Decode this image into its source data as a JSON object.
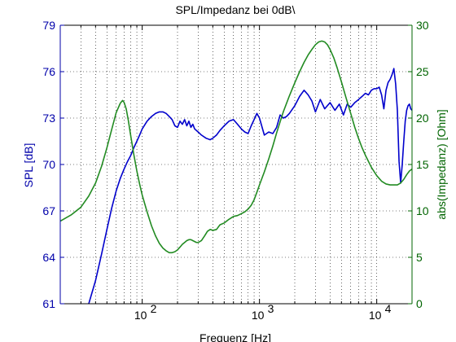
{
  "chart_data": {
    "type": "line",
    "title": "SPL/Impedanz bei 0dB\\",
    "xlabel": "Frequenz [Hz]",
    "x_scale": "log",
    "xlim": [
      20,
      20000
    ],
    "x_ticks": [
      {
        "value": 100,
        "label": "10",
        "exp": "2"
      },
      {
        "value": 1000,
        "label": "10",
        "exp": "3"
      },
      {
        "value": 10000,
        "label": "10",
        "exp": "4"
      }
    ],
    "y_left": {
      "label": "SPL [dB]",
      "color": "#0000aa",
      "lim": [
        61,
        79
      ],
      "ticks": [
        "61",
        "64",
        "67",
        "70",
        "73",
        "76",
        "79"
      ]
    },
    "y_right": {
      "label": "abs(Impedanz) [Ohm]",
      "color": "#006400",
      "lim": [
        0,
        30
      ],
      "ticks": [
        "0",
        "5",
        "10",
        "15",
        "20",
        "25",
        "30"
      ]
    },
    "grid": true,
    "series": [
      {
        "axis": "left",
        "color": "#0000cc",
        "x": [
          35,
          40,
          45,
          50,
          55,
          60,
          65,
          70,
          75,
          80,
          85,
          90,
          95,
          100,
          110,
          120,
          130,
          140,
          150,
          160,
          170,
          180,
          190,
          200,
          210,
          220,
          230,
          240,
          250,
          260,
          270,
          280,
          300,
          320,
          350,
          380,
          400,
          430,
          460,
          500,
          550,
          600,
          650,
          700,
          750,
          800,
          850,
          900,
          950,
          1000,
          1100,
          1200,
          1300,
          1400,
          1500,
          1600,
          1700,
          1800,
          2000,
          2200,
          2400,
          2600,
          2800,
          3000,
          3300,
          3600,
          4000,
          4400,
          4800,
          5200,
          5600,
          6000,
          6500,
          7000,
          7500,
          8000,
          8500,
          9000,
          9500,
          10000,
          10500,
          11000,
          11500,
          12000,
          12500,
          13000,
          13500,
          14000,
          14500,
          15000,
          15500,
          16000,
          16500,
          17000,
          17500,
          18000,
          18500,
          19000,
          19500,
          20000
        ],
        "y": [
          61.0,
          62.5,
          64.2,
          65.8,
          67.2,
          68.3,
          69.1,
          69.7,
          70.2,
          70.6,
          71.1,
          71.5,
          71.9,
          72.3,
          72.8,
          73.1,
          73.3,
          73.4,
          73.4,
          73.3,
          73.1,
          72.9,
          72.5,
          72.4,
          72.8,
          72.6,
          72.9,
          72.5,
          72.8,
          72.4,
          72.6,
          72.3,
          72.1,
          71.9,
          71.7,
          71.6,
          71.7,
          71.9,
          72.2,
          72.5,
          72.8,
          72.9,
          72.6,
          72.3,
          72.1,
          72.0,
          72.5,
          72.9,
          73.3,
          73.0,
          71.9,
          72.1,
          72.0,
          72.4,
          73.2,
          73.0,
          73.1,
          73.3,
          73.8,
          74.4,
          74.8,
          74.5,
          74.1,
          73.4,
          74.2,
          73.6,
          74.0,
          73.5,
          73.9,
          73.2,
          73.9,
          73.7,
          74.0,
          74.2,
          74.4,
          74.6,
          74.5,
          74.8,
          74.9,
          74.9,
          75.0,
          74.5,
          73.6,
          74.8,
          75.3,
          75.5,
          75.8,
          76.2,
          75.2,
          73.5,
          70.2,
          68.8,
          70.0,
          71.5,
          72.8,
          73.5,
          73.8,
          73.9,
          73.6,
          73.5
        ]
      },
      {
        "axis": "right",
        "color": "#228b22",
        "x": [
          20,
          25,
          30,
          35,
          40,
          45,
          50,
          55,
          60,
          65,
          68,
          70,
          73,
          76,
          80,
          85,
          90,
          95,
          100,
          110,
          120,
          130,
          140,
          150,
          160,
          170,
          180,
          190,
          200,
          210,
          220,
          230,
          240,
          250,
          260,
          270,
          280,
          290,
          300,
          320,
          340,
          360,
          380,
          400,
          430,
          460,
          500,
          550,
          600,
          650,
          700,
          750,
          800,
          850,
          900,
          950,
          1000,
          1100,
          1200,
          1300,
          1400,
          1500,
          1600,
          1800,
          2000,
          2200,
          2400,
          2600,
          2800,
          3000,
          3200,
          3400,
          3600,
          3800,
          4000,
          4300,
          4600,
          5000,
          5500,
          6000,
          6500,
          7000,
          7500,
          8000,
          9000,
          10000,
          11000,
          12000,
          13000,
          14000,
          15000,
          16000,
          17000,
          18000,
          19000,
          20000
        ],
        "y": [
          8.9,
          9.6,
          10.4,
          11.6,
          13.0,
          14.8,
          16.8,
          18.8,
          20.6,
          21.6,
          21.9,
          21.7,
          21.0,
          19.8,
          18.0,
          16.0,
          14.3,
          12.9,
          11.7,
          9.9,
          8.4,
          7.3,
          6.5,
          6.0,
          5.7,
          5.5,
          5.5,
          5.6,
          5.8,
          6.1,
          6.4,
          6.6,
          6.8,
          6.9,
          6.9,
          6.8,
          6.7,
          6.6,
          6.6,
          6.8,
          7.3,
          7.8,
          8.0,
          7.9,
          8.0,
          8.5,
          8.7,
          9.1,
          9.4,
          9.5,
          9.7,
          9.9,
          10.2,
          10.6,
          11.2,
          12.0,
          12.8,
          14.2,
          15.6,
          17.0,
          18.4,
          19.6,
          20.7,
          22.4,
          23.8,
          25.0,
          26.0,
          26.8,
          27.4,
          27.9,
          28.2,
          28.3,
          28.2,
          27.9,
          27.4,
          26.5,
          25.4,
          23.9,
          22.1,
          20.5,
          19.0,
          17.8,
          16.8,
          16.0,
          14.7,
          13.8,
          13.2,
          12.9,
          12.8,
          12.8,
          12.8,
          13.0,
          13.4,
          13.9,
          14.3,
          14.5
        ]
      }
    ]
  }
}
